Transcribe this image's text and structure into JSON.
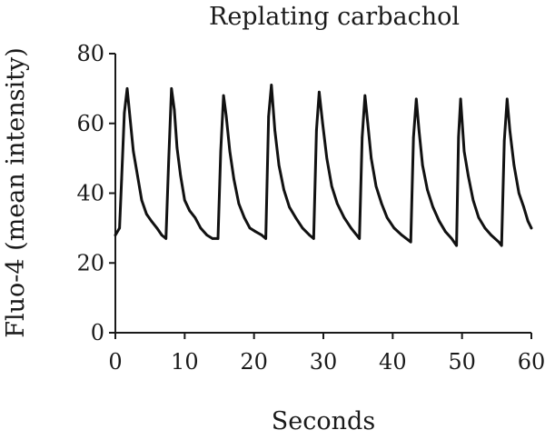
{
  "chart_data": {
    "type": "line",
    "title": "Replating carbachol",
    "xlabel": "Seconds",
    "ylabel": "Fluo-4 (mean intensity)",
    "xlim": [
      0,
      60
    ],
    "ylim": [
      0,
      80
    ],
    "xticks": [
      0,
      10,
      20,
      30,
      40,
      50,
      60
    ],
    "yticks": [
      0,
      20,
      40,
      60,
      80
    ],
    "grid": false,
    "series": [
      {
        "color": "#111111",
        "x": [
          0,
          0.6,
          0.9,
          1.3,
          1.7,
          2.1,
          2.6,
          3.2,
          3.8,
          4.5,
          5.2,
          6.0,
          6.7,
          7.3,
          7.7,
          8.1,
          8.5,
          8.9,
          9.4,
          10.0,
          10.7,
          11.5,
          12.3,
          13.2,
          14.0,
          14.8,
          15.2,
          15.6,
          16.0,
          16.5,
          17.1,
          17.8,
          18.6,
          19.4,
          20.2,
          21.1,
          21.7,
          22.1,
          22.5,
          23.0,
          23.6,
          24.3,
          25.1,
          26.0,
          27.0,
          28.0,
          28.6,
          29.0,
          29.4,
          29.9,
          30.5,
          31.2,
          32.0,
          33.0,
          34.0,
          35.2,
          35.6,
          36.0,
          36.4,
          36.9,
          37.6,
          38.4,
          39.2,
          40.2,
          41.3,
          42.6,
          43.0,
          43.4,
          43.8,
          44.3,
          45.0,
          45.8,
          46.7,
          47.6,
          48.5,
          49.2,
          49.5,
          49.8,
          50.3,
          50.9,
          51.6,
          52.4,
          53.3,
          54.2,
          55.3,
          55.7,
          56.1,
          56.5,
          56.9,
          57.5,
          58.2,
          58.9,
          59.5,
          60.0
        ],
        "y": [
          28,
          30,
          44,
          63,
          70,
          62,
          52,
          45,
          38,
          34,
          32,
          30,
          28,
          27,
          50,
          70,
          64,
          53,
          45,
          38,
          35,
          33,
          30,
          28,
          27,
          27,
          52,
          68,
          62,
          52,
          44,
          37,
          33,
          30,
          29,
          28,
          27,
          62,
          71,
          58,
          48,
          41,
          36,
          33,
          30,
          28,
          27,
          58,
          69,
          60,
          50,
          42,
          37,
          33,
          30,
          27,
          56,
          68,
          60,
          50,
          42,
          37,
          33,
          30,
          28,
          26,
          56,
          67,
          58,
          48,
          41,
          36,
          32,
          29,
          27,
          25,
          56,
          67,
          52,
          45,
          38,
          33,
          30,
          28,
          26,
          25,
          55,
          67,
          58,
          48,
          40,
          36,
          32,
          30
        ]
      }
    ]
  }
}
